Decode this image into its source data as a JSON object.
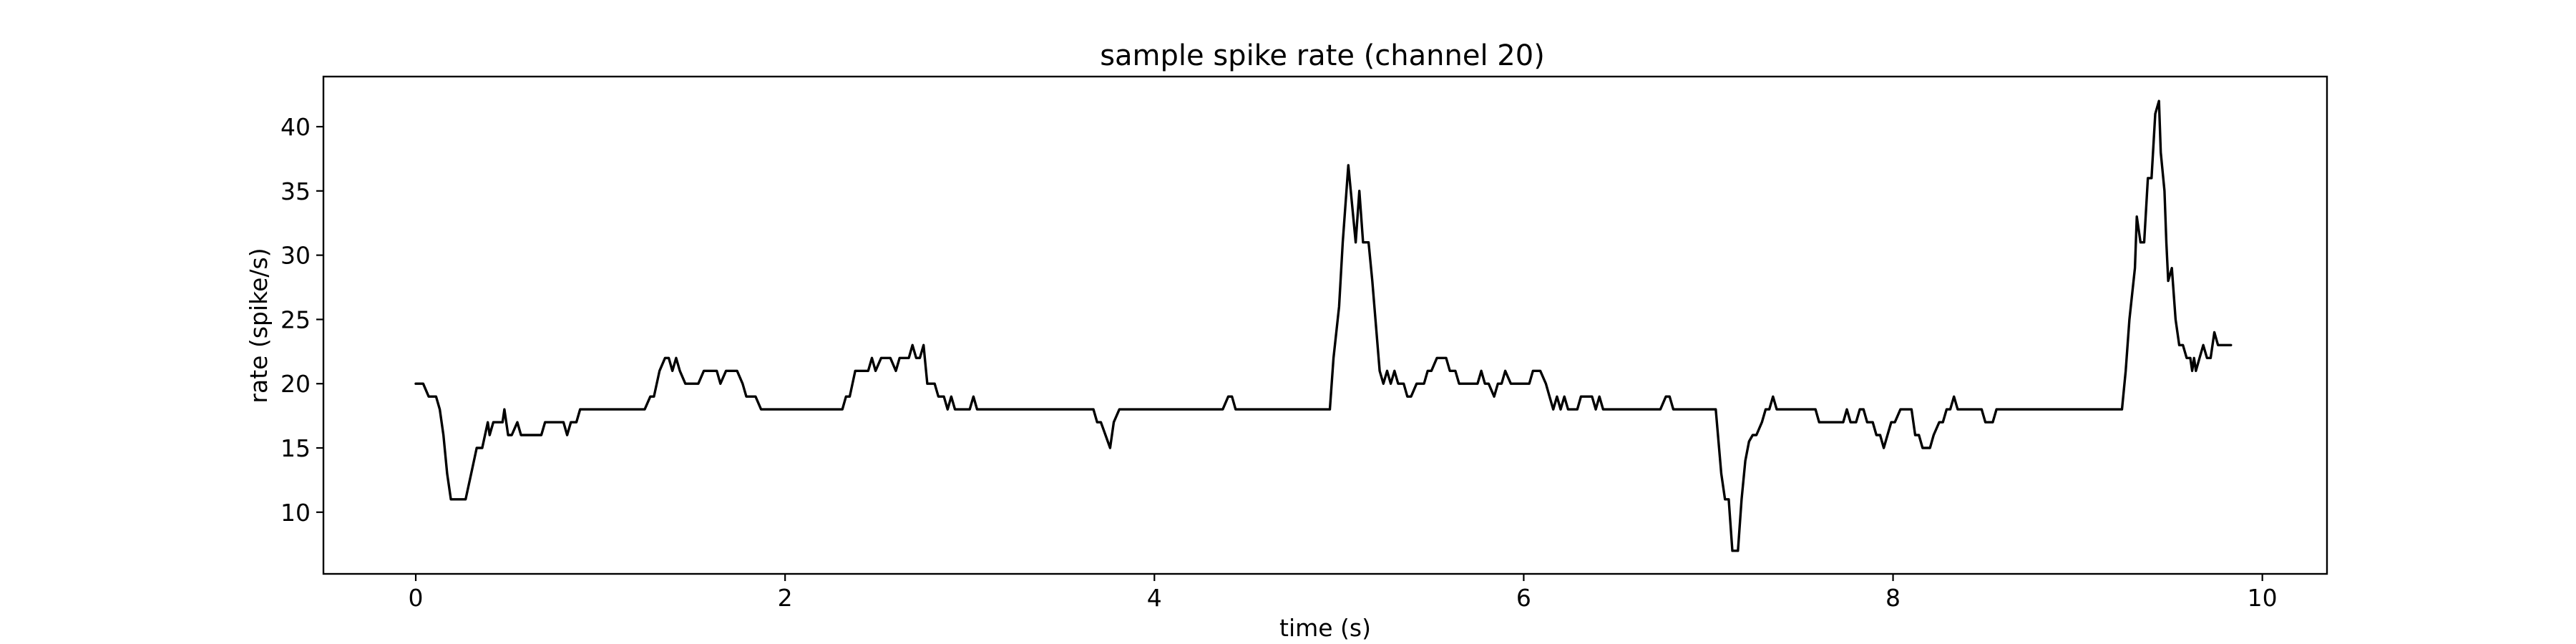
{
  "chart_data": {
    "type": "line",
    "title": "sample spike rate (channel 20)",
    "xlabel": "time (s)",
    "ylabel": "rate (spike/s)",
    "xlim": [
      -0.5,
      10.35
    ],
    "ylim": [
      5.2,
      43.9
    ],
    "xticks": [
      0,
      2,
      4,
      6,
      8,
      10
    ],
    "yticks": [
      10,
      15,
      20,
      25,
      30,
      35,
      40
    ],
    "grid": false,
    "legend": "none",
    "line_color": "#000000",
    "series": [
      {
        "points": [
          [
            0.0,
            20
          ],
          [
            0.04,
            20
          ],
          [
            0.07,
            19
          ],
          [
            0.11,
            19
          ],
          [
            0.13,
            18
          ],
          [
            0.15,
            16
          ],
          [
            0.17,
            13
          ],
          [
            0.19,
            11
          ],
          [
            0.25,
            11
          ],
          [
            0.27,
            11
          ],
          [
            0.3,
            13
          ],
          [
            0.33,
            15
          ],
          [
            0.36,
            15
          ],
          [
            0.39,
            17
          ],
          [
            0.4,
            16
          ],
          [
            0.42,
            17
          ],
          [
            0.47,
            17
          ],
          [
            0.48,
            18
          ],
          [
            0.5,
            16
          ],
          [
            0.52,
            16
          ],
          [
            0.55,
            17
          ],
          [
            0.57,
            16
          ],
          [
            0.68,
            16
          ],
          [
            0.7,
            17
          ],
          [
            0.8,
            17
          ],
          [
            0.82,
            16
          ],
          [
            0.84,
            17
          ],
          [
            0.87,
            17
          ],
          [
            0.89,
            18
          ],
          [
            1.24,
            18
          ],
          [
            1.27,
            19
          ],
          [
            1.29,
            19
          ],
          [
            1.32,
            21
          ],
          [
            1.35,
            22
          ],
          [
            1.37,
            22
          ],
          [
            1.39,
            21
          ],
          [
            1.41,
            22
          ],
          [
            1.43,
            21
          ],
          [
            1.46,
            20
          ],
          [
            1.53,
            20
          ],
          [
            1.56,
            21
          ],
          [
            1.63,
            21
          ],
          [
            1.65,
            20
          ],
          [
            1.68,
            21
          ],
          [
            1.74,
            21
          ],
          [
            1.77,
            20
          ],
          [
            1.79,
            19
          ],
          [
            1.84,
            19
          ],
          [
            1.87,
            18
          ],
          [
            2.31,
            18
          ],
          [
            2.33,
            19
          ],
          [
            2.35,
            19
          ],
          [
            2.38,
            21
          ],
          [
            2.45,
            21
          ],
          [
            2.47,
            22
          ],
          [
            2.49,
            21
          ],
          [
            2.52,
            22
          ],
          [
            2.57,
            22
          ],
          [
            2.6,
            21
          ],
          [
            2.62,
            22
          ],
          [
            2.67,
            22
          ],
          [
            2.69,
            23
          ],
          [
            2.71,
            22
          ],
          [
            2.73,
            22
          ],
          [
            2.75,
            23
          ],
          [
            2.77,
            20
          ],
          [
            2.81,
            20
          ],
          [
            2.83,
            19
          ],
          [
            2.86,
            19
          ],
          [
            2.88,
            18
          ],
          [
            2.9,
            19
          ],
          [
            2.92,
            18
          ],
          [
            3.0,
            18
          ],
          [
            3.02,
            19
          ],
          [
            3.04,
            18
          ],
          [
            3.67,
            18
          ],
          [
            3.69,
            17
          ],
          [
            3.71,
            17
          ],
          [
            3.76,
            15
          ],
          [
            3.78,
            17
          ],
          [
            3.81,
            18
          ],
          [
            4.37,
            18
          ],
          [
            4.4,
            19
          ],
          [
            4.42,
            19
          ],
          [
            4.44,
            18
          ],
          [
            4.95,
            18
          ],
          [
            4.97,
            22
          ],
          [
            5.0,
            26
          ],
          [
            5.02,
            31
          ],
          [
            5.05,
            37
          ],
          [
            5.09,
            31
          ],
          [
            5.11,
            35
          ],
          [
            5.13,
            31
          ],
          [
            5.16,
            31
          ],
          [
            5.18,
            28
          ],
          [
            5.22,
            21
          ],
          [
            5.24,
            20
          ],
          [
            5.26,
            21
          ],
          [
            5.28,
            20
          ],
          [
            5.3,
            21
          ],
          [
            5.32,
            20
          ],
          [
            5.35,
            20
          ],
          [
            5.37,
            19
          ],
          [
            5.39,
            19
          ],
          [
            5.42,
            20
          ],
          [
            5.46,
            20
          ],
          [
            5.48,
            21
          ],
          [
            5.5,
            21
          ],
          [
            5.53,
            22
          ],
          [
            5.58,
            22
          ],
          [
            5.6,
            21
          ],
          [
            5.63,
            21
          ],
          [
            5.65,
            20
          ],
          [
            5.75,
            20
          ],
          [
            5.77,
            21
          ],
          [
            5.79,
            20
          ],
          [
            5.81,
            20
          ],
          [
            5.84,
            19
          ],
          [
            5.86,
            20
          ],
          [
            5.88,
            20
          ],
          [
            5.9,
            21
          ],
          [
            5.93,
            20
          ],
          [
            6.03,
            20
          ],
          [
            6.05,
            21
          ],
          [
            6.09,
            21
          ],
          [
            6.12,
            20
          ],
          [
            6.14,
            19
          ],
          [
            6.16,
            18
          ],
          [
            6.18,
            19
          ],
          [
            6.2,
            18
          ],
          [
            6.22,
            19
          ],
          [
            6.24,
            18
          ],
          [
            6.29,
            18
          ],
          [
            6.31,
            19
          ],
          [
            6.37,
            19
          ],
          [
            6.39,
            18
          ],
          [
            6.41,
            19
          ],
          [
            6.43,
            18
          ],
          [
            6.74,
            18
          ],
          [
            6.77,
            19
          ],
          [
            6.79,
            19
          ],
          [
            6.81,
            18
          ],
          [
            7.04,
            18
          ],
          [
            7.07,
            13
          ],
          [
            7.09,
            11
          ],
          [
            7.11,
            11
          ],
          [
            7.13,
            7
          ],
          [
            7.16,
            7
          ],
          [
            7.18,
            11
          ],
          [
            7.2,
            14
          ],
          [
            7.22,
            15.5
          ],
          [
            7.24,
            16
          ],
          [
            7.26,
            16
          ],
          [
            7.29,
            17
          ],
          [
            7.31,
            18
          ],
          [
            7.33,
            18
          ],
          [
            7.35,
            19
          ],
          [
            7.37,
            18
          ],
          [
            7.58,
            18
          ],
          [
            7.6,
            17
          ],
          [
            7.73,
            17
          ],
          [
            7.75,
            18
          ],
          [
            7.77,
            17
          ],
          [
            7.8,
            17
          ],
          [
            7.82,
            18
          ],
          [
            7.84,
            18
          ],
          [
            7.86,
            17
          ],
          [
            7.89,
            17
          ],
          [
            7.91,
            16
          ],
          [
            7.93,
            16
          ],
          [
            7.95,
            15
          ],
          [
            7.97,
            16
          ],
          [
            7.99,
            17
          ],
          [
            8.01,
            17
          ],
          [
            8.04,
            18
          ],
          [
            8.1,
            18
          ],
          [
            8.12,
            16
          ],
          [
            8.14,
            16
          ],
          [
            8.16,
            15
          ],
          [
            8.2,
            15
          ],
          [
            8.22,
            16
          ],
          [
            8.25,
            17
          ],
          [
            8.27,
            17
          ],
          [
            8.29,
            18
          ],
          [
            8.31,
            18
          ],
          [
            8.33,
            19
          ],
          [
            8.35,
            18
          ],
          [
            8.48,
            18
          ],
          [
            8.5,
            17
          ],
          [
            8.54,
            17
          ],
          [
            8.56,
            18
          ],
          [
            9.24,
            18
          ],
          [
            9.26,
            21
          ],
          [
            9.28,
            25
          ],
          [
            9.31,
            29
          ],
          [
            9.32,
            33
          ],
          [
            9.34,
            31
          ],
          [
            9.36,
            31
          ],
          [
            9.38,
            36
          ],
          [
            9.4,
            36
          ],
          [
            9.42,
            41
          ],
          [
            9.44,
            42
          ],
          [
            9.45,
            38
          ],
          [
            9.47,
            35
          ],
          [
            9.48,
            31
          ],
          [
            9.49,
            28
          ],
          [
            9.51,
            29
          ],
          [
            9.53,
            25
          ],
          [
            9.55,
            23
          ],
          [
            9.57,
            23
          ],
          [
            9.59,
            22
          ],
          [
            9.61,
            22
          ],
          [
            9.62,
            21
          ],
          [
            9.63,
            22
          ],
          [
            9.64,
            21
          ],
          [
            9.66,
            22
          ],
          [
            9.68,
            23
          ],
          [
            9.7,
            22
          ],
          [
            9.72,
            22
          ],
          [
            9.74,
            24
          ],
          [
            9.76,
            23
          ],
          [
            9.83,
            23
          ]
        ]
      }
    ]
  }
}
